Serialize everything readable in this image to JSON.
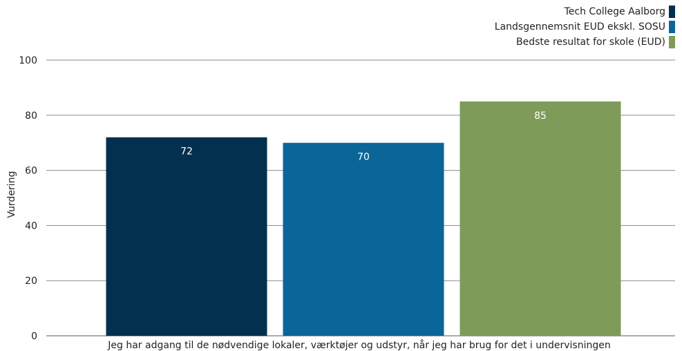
{
  "chart_data": {
    "type": "bar",
    "title": "",
    "categories": [
      "Jeg har adgang til de nødvendige lokaler, værktøjer og udstyr, når jeg har brug for det i undervisningen"
    ],
    "series": [
      {
        "name": "Tech College Aalborg",
        "values": [
          72
        ],
        "color": "#04304f"
      },
      {
        "name": "Landsgennemsnit EUD ekskl. SOSU",
        "values": [
          70
        ],
        "color": "#0a6699"
      },
      {
        "name": "Bedste resultat for skole (EUD)",
        "values": [
          85
        ],
        "color": "#7e9b59"
      }
    ],
    "data_labels": [
      "72",
      "70",
      "85"
    ],
    "xlabel": "",
    "ylabel": "Vurdering",
    "ylim": [
      0,
      100
    ],
    "yticks": [
      0,
      20,
      40,
      60,
      80,
      100
    ],
    "grid": true,
    "legend_position": "top-right"
  }
}
